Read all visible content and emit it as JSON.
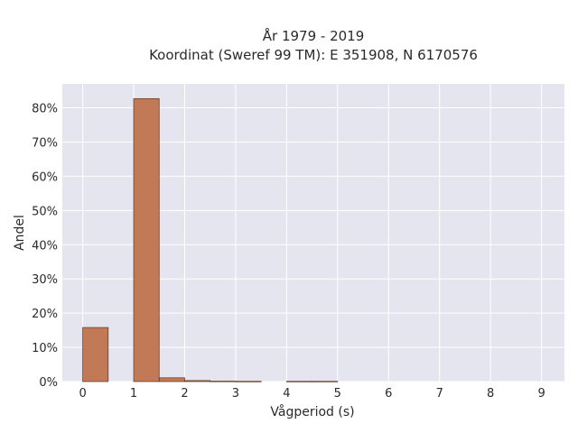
{
  "chart_data": {
    "type": "bar",
    "title_line1": "År 1979 - 2019",
    "title_line2": "Koordinat (Sweref 99 TM): E 351908, N 6170576",
    "xlabel": "Vågperiod (s)",
    "ylabel": "Andel",
    "xlim": [
      -0.4,
      9.45
    ],
    "ylim": [
      0,
      0.87
    ],
    "xticks": [
      0,
      1,
      2,
      3,
      4,
      5,
      6,
      7,
      8,
      9
    ],
    "yticks": [
      0,
      0.1,
      0.2,
      0.3,
      0.4,
      0.5,
      0.6,
      0.7,
      0.8
    ],
    "ytick_labels": [
      "0%",
      "10%",
      "20%",
      "30%",
      "40%",
      "50%",
      "60%",
      "70%",
      "80%"
    ],
    "bin_width": 0.5,
    "bins": [
      {
        "x0": 0.0,
        "value": 0.158
      },
      {
        "x0": 0.5,
        "value": 0.0
      },
      {
        "x0": 1.0,
        "value": 0.827
      },
      {
        "x0": 1.5,
        "value": 0.011
      },
      {
        "x0": 2.0,
        "value": 0.003
      },
      {
        "x0": 2.5,
        "value": 0.0012
      },
      {
        "x0": 3.0,
        "value": 0.0008
      },
      {
        "x0": 3.5,
        "value": 0.0
      },
      {
        "x0": 4.0,
        "value": 0.0008
      },
      {
        "x0": 4.5,
        "value": 0.0008
      }
    ],
    "colors": {
      "bar": "#c17a55",
      "bar_edge": "#5a3520",
      "plot_bg": "#e5e5ef",
      "grid": "#ffffff"
    },
    "grid": true
  }
}
